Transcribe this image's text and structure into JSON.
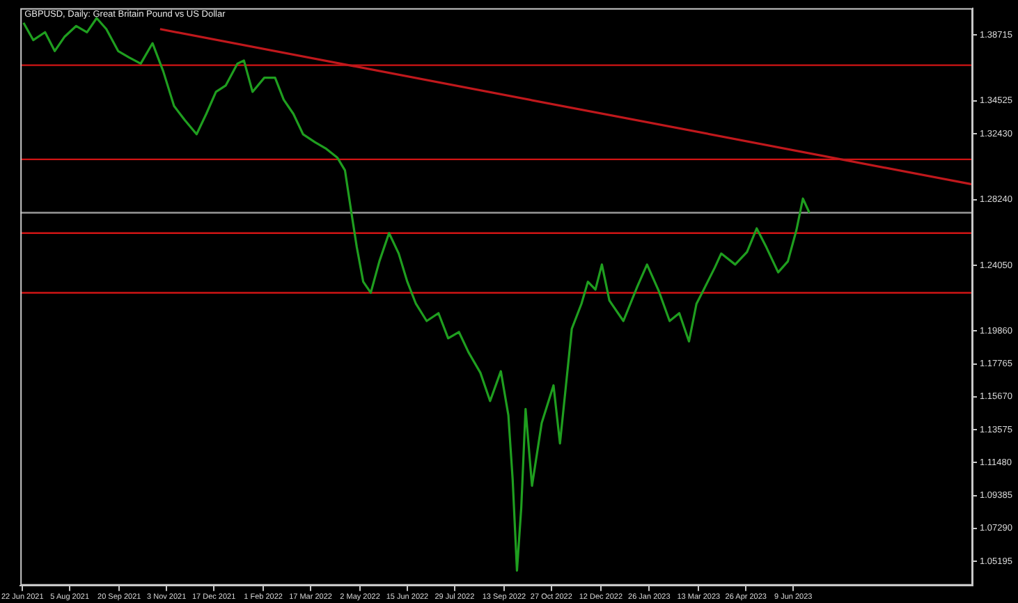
{
  "chart_data": {
    "type": "line",
    "title": "GBPUSD, Daily: Great Britain Pound vs US Dollar",
    "series": [
      {
        "color": "#1f9e1f",
        "x": [
          "2021-06-23",
          "2021-07-02",
          "2021-07-13",
          "2021-07-22",
          "2021-07-31",
          "2021-08-11",
          "2021-08-21",
          "2021-08-30",
          "2021-09-08",
          "2021-09-19",
          "2021-09-29",
          "2021-10-10",
          "2021-10-21",
          "2021-10-31",
          "2021-11-10",
          "2021-11-20",
          "2021-12-01",
          "2021-12-10",
          "2021-12-19",
          "2021-12-28",
          "2022-01-08",
          "2022-01-14",
          "2022-01-22",
          "2022-02-02",
          "2022-02-12",
          "2022-02-20",
          "2022-03-01",
          "2022-03-10",
          "2022-03-21",
          "2022-03-31",
          "2022-04-11",
          "2022-04-18",
          "2022-04-24",
          "2022-04-29",
          "2022-05-05",
          "2022-05-12",
          "2022-05-20",
          "2022-05-29",
          "2022-06-07",
          "2022-06-15",
          "2022-06-23",
          "2022-07-03",
          "2022-07-14",
          "2022-07-23",
          "2022-08-02",
          "2022-08-11",
          "2022-08-22",
          "2022-08-31",
          "2022-09-10",
          "2022-09-17",
          "2022-09-21",
          "2022-09-25",
          "2022-09-29",
          "2022-10-03",
          "2022-10-09",
          "2022-10-18",
          "2022-10-29",
          "2022-11-04",
          "2022-11-15",
          "2022-11-24",
          "2022-11-30",
          "2022-12-07",
          "2022-12-13",
          "2022-12-20",
          "2023-01-02",
          "2023-01-15",
          "2023-01-24",
          "2023-02-04",
          "2023-02-14",
          "2023-02-23",
          "2023-03-04",
          "2023-03-11",
          "2023-03-17",
          "2023-03-28",
          "2023-04-03",
          "2023-04-16",
          "2023-04-27",
          "2023-05-06",
          "2023-05-15",
          "2023-05-26",
          "2023-06-04",
          "2023-06-12",
          "2023-06-18",
          "2023-06-24"
        ],
        "values": [
          1.395,
          1.384,
          1.389,
          1.377,
          1.386,
          1.393,
          1.389,
          1.398,
          1.391,
          1.377,
          1.373,
          1.369,
          1.382,
          1.364,
          1.342,
          1.333,
          1.324,
          1.337,
          1.351,
          1.355,
          1.369,
          1.371,
          1.351,
          1.36,
          1.36,
          1.346,
          1.337,
          1.324,
          1.319,
          1.315,
          1.309,
          1.301,
          1.274,
          1.252,
          1.23,
          1.223,
          1.243,
          1.261,
          1.248,
          1.23,
          1.216,
          1.205,
          1.21,
          1.194,
          1.198,
          1.185,
          1.172,
          1.154,
          1.173,
          1.145,
          1.104,
          1.046,
          1.086,
          1.149,
          1.1,
          1.14,
          1.164,
          1.127,
          1.2,
          1.216,
          1.23,
          1.225,
          1.241,
          1.218,
          1.205,
          1.227,
          1.241,
          1.224,
          1.205,
          1.21,
          1.192,
          1.216,
          1.224,
          1.239,
          1.248,
          1.241,
          1.249,
          1.264,
          1.252,
          1.236,
          1.243,
          1.263,
          1.283,
          1.274
        ]
      },
      {
        "color": "#c0181c",
        "x": [
          "2021-10-28",
          "2023-11-23"
        ],
        "values": [
          1.391,
          1.292
        ]
      }
    ],
    "xlim": [
      "2021-06-20",
      "2023-11-23"
    ],
    "xticks": [
      {
        "value": "2021-06-22",
        "label": "22 Jun 2021"
      },
      {
        "value": "2021-08-05",
        "label": "5 Aug 2021"
      },
      {
        "value": "2021-09-20",
        "label": "20 Sep 2021"
      },
      {
        "value": "2021-11-03",
        "label": "3 Nov 2021"
      },
      {
        "value": "2021-12-17",
        "label": "17 Dec 2021"
      },
      {
        "value": "2022-02-01",
        "label": "1 Feb 2022"
      },
      {
        "value": "2022-03-17",
        "label": "17 Mar 2022"
      },
      {
        "value": "2022-05-02",
        "label": "2 May 2022"
      },
      {
        "value": "2022-06-15",
        "label": "15 Jun 2022"
      },
      {
        "value": "2022-07-29",
        "label": "29 Jul 2022"
      },
      {
        "value": "2022-09-13",
        "label": "13 Sep 2022"
      },
      {
        "value": "2022-10-27",
        "label": "27 Oct 2022"
      },
      {
        "value": "2022-12-12",
        "label": "12 Dec 2022"
      },
      {
        "value": "2023-01-26",
        "label": "26 Jan 2023"
      },
      {
        "value": "2023-03-13",
        "label": "13 Mar 2023"
      },
      {
        "value": "2023-04-26",
        "label": "26 Apr 2023"
      },
      {
        "value": "2023-06-09",
        "label": "9 Jun 2023"
      }
    ],
    "ylim": [
      1.0365,
      1.4043
    ],
    "yticks": [
      {
        "value": 1.05195,
        "label": "1.05195"
      },
      {
        "value": 1.0729,
        "label": "1.07290"
      },
      {
        "value": 1.09385,
        "label": "1.09385"
      },
      {
        "value": 1.1148,
        "label": "1.11480"
      },
      {
        "value": 1.13575,
        "label": "1.13575"
      },
      {
        "value": 1.1567,
        "label": "1.15670"
      },
      {
        "value": 1.17765,
        "label": "1.17765"
      },
      {
        "value": 1.1986,
        "label": "1.19860"
      },
      {
        "value": 1.2405,
        "label": "1.24050"
      },
      {
        "value": 1.2824,
        "label": "1.28240"
      },
      {
        "value": 1.3243,
        "label": "1.32430"
      },
      {
        "value": 1.34525,
        "label": "1.34525"
      },
      {
        "value": 1.38715,
        "label": "1.38715"
      }
    ],
    "ref_lines": [
      {
        "axis": "y",
        "value": 1.368,
        "color": "#d01414"
      },
      {
        "axis": "y",
        "value": 1.308,
        "color": "#d01414"
      },
      {
        "axis": "y",
        "value": 1.274,
        "color": "#9a9a9a"
      },
      {
        "axis": "y",
        "value": 1.261,
        "color": "#d01414"
      },
      {
        "axis": "y",
        "value": 1.223,
        "color": "#d01414"
      }
    ],
    "grid": false,
    "legend": false,
    "marker": "none"
  }
}
